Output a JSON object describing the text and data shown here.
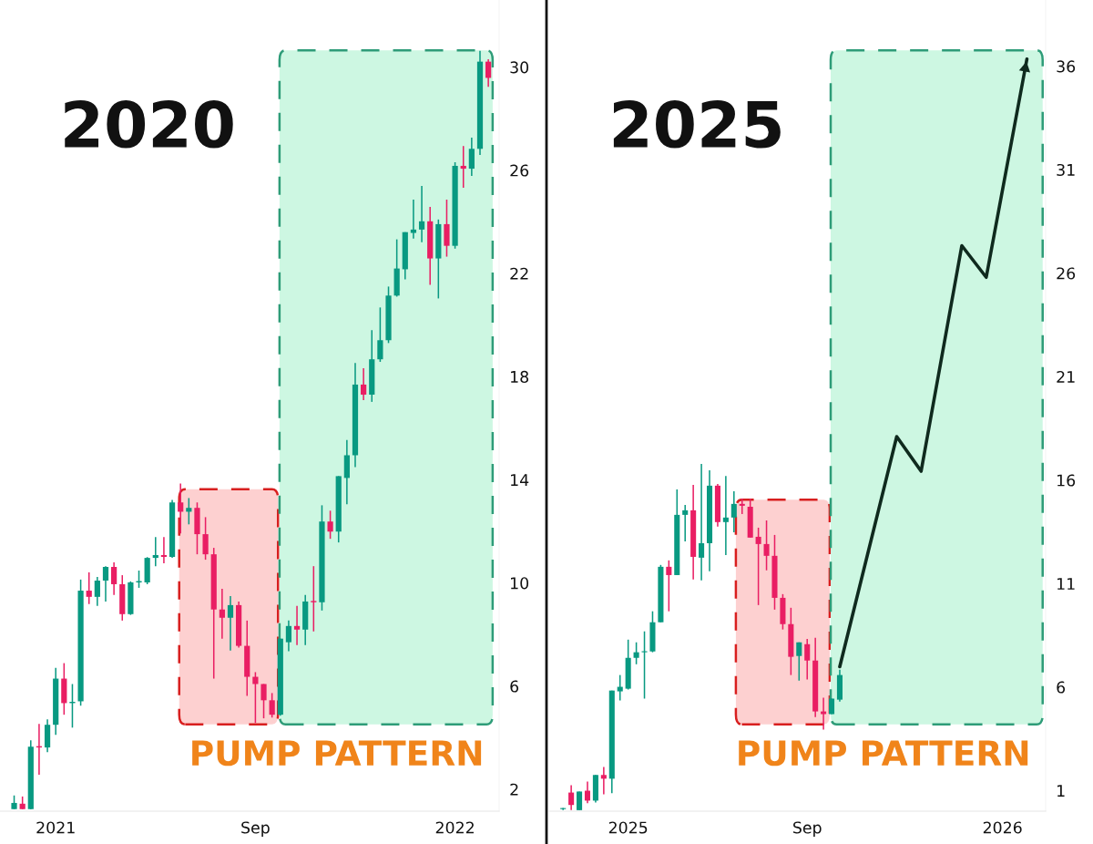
{
  "chart_data": [
    {
      "type": "candlestick",
      "annotations": [
        "2020",
        "PUMP PATTERN"
      ],
      "categories": [
        null,
        null,
        null,
        null,
        null,
        "2021",
        null,
        null,
        null,
        null,
        null,
        null,
        null,
        null,
        null,
        null,
        null,
        null,
        null,
        null,
        null,
        null,
        null,
        null,
        null,
        null,
        null,
        null,
        null,
        "Sep",
        null,
        null,
        null,
        null,
        null,
        null,
        null,
        null,
        null,
        null,
        null,
        null,
        null,
        null,
        null,
        null,
        null,
        null,
        null,
        null,
        null,
        null,
        null,
        "2022",
        null,
        null,
        null,
        null
      ],
      "ohlc": [
        [
          1.23,
          1.76,
          1.23,
          1.47
        ],
        [
          1.44,
          1.72,
          1.23,
          1.23
        ],
        [
          1.23,
          3.9,
          1.23,
          3.65
        ],
        [
          3.65,
          4.53,
          2.56,
          3.62
        ],
        [
          3.62,
          4.71,
          3.44,
          4.5
        ],
        [
          4.5,
          6.71,
          4.11,
          6.29
        ],
        [
          6.29,
          6.89,
          4.89,
          5.34
        ],
        [
          5.34,
          6.08,
          4.39,
          5.38
        ],
        [
          5.41,
          10.13,
          5.24,
          9.7
        ],
        [
          9.7,
          10.41,
          9.18,
          9.46
        ],
        [
          9.46,
          10.23,
          9.11,
          10.09
        ],
        [
          10.09,
          10.65,
          9.28,
          10.62
        ],
        [
          10.62,
          10.8,
          9.53,
          9.95
        ],
        [
          9.95,
          10.3,
          8.54,
          8.79
        ],
        [
          8.79,
          10.06,
          8.76,
          10.02
        ],
        [
          10.02,
          10.48,
          9.81,
          10.05
        ],
        [
          10.02,
          11.0,
          9.95,
          10.97
        ],
        [
          10.97,
          11.78,
          10.65,
          11.08
        ],
        [
          11.08,
          11.78,
          10.76,
          11.01
        ],
        [
          11.01,
          13.22,
          10.97,
          13.12
        ],
        [
          13.12,
          13.85,
          11.92,
          12.76
        ],
        [
          12.76,
          13.29,
          12.27,
          12.91
        ],
        [
          12.91,
          13.12,
          11.11,
          11.89
        ],
        [
          11.89,
          12.55,
          10.9,
          11.11
        ],
        [
          11.11,
          11.36,
          6.29,
          8.97
        ],
        [
          8.97,
          9.77,
          7.84,
          8.65
        ],
        [
          8.65,
          9.49,
          7.38,
          9.14
        ],
        [
          9.14,
          9.28,
          7.49,
          7.56
        ],
        [
          7.56,
          8.54,
          5.62,
          6.36
        ],
        [
          6.36,
          6.54,
          4.57,
          6.08
        ],
        [
          6.08,
          6.08,
          4.75,
          5.45
        ],
        [
          5.45,
          5.73,
          4.78,
          4.89
        ],
        [
          4.89,
          7.84,
          4.85,
          7.84
        ],
        [
          7.7,
          8.54,
          7.35,
          8.33
        ],
        [
          8.33,
          9.11,
          7.59,
          8.19
        ],
        [
          8.19,
          9.53,
          7.59,
          9.28
        ],
        [
          9.28,
          10.65,
          8.12,
          9.25
        ],
        [
          9.25,
          13.01,
          8.93,
          12.38
        ],
        [
          12.38,
          12.8,
          11.71,
          11.99
        ],
        [
          11.99,
          14.14,
          11.57,
          14.14
        ],
        [
          14.07,
          15.54,
          13.05,
          14.95
        ],
        [
          14.95,
          18.53,
          14.49,
          17.69
        ],
        [
          17.69,
          18.32,
          17.09,
          17.3
        ],
        [
          17.3,
          19.8,
          17.02,
          18.67
        ],
        [
          18.67,
          20.68,
          18.57,
          19.41
        ],
        [
          19.41,
          21.49,
          19.3,
          21.14
        ],
        [
          21.14,
          23.32,
          21.1,
          22.19
        ],
        [
          22.16,
          23.6,
          21.77,
          23.6
        ],
        [
          23.57,
          24.86,
          23.35,
          23.7
        ],
        [
          23.7,
          25.39,
          23.21,
          24.02
        ],
        [
          24.02,
          24.58,
          21.56,
          22.58
        ],
        [
          22.58,
          24.09,
          21.03,
          23.91
        ],
        [
          23.91,
          24.86,
          22.65,
          23.07
        ],
        [
          23.07,
          26.31,
          22.96,
          26.17
        ],
        [
          26.17,
          26.94,
          25.32,
          26.06
        ],
        [
          26.06,
          27.26,
          25.78,
          26.83
        ],
        [
          26.83,
          30.63,
          26.59,
          30.21
        ],
        [
          30.21,
          30.3,
          29.23,
          29.58
        ]
      ],
      "colors": [
        "#089981",
        "#e91e63",
        "#089981",
        "#e91e63",
        "#089981",
        "#089981",
        "#e91e63",
        "#089981",
        "#089981",
        "#e91e63",
        "#089981",
        "#089981",
        "#e91e63",
        "#e91e63",
        "#089981",
        "#089981",
        "#089981",
        "#089981",
        "#e91e63",
        "#089981",
        "#e91e63",
        "#089981",
        "#e91e63",
        "#e91e63",
        "#e91e63",
        "#e91e63",
        "#089981",
        "#e91e63",
        "#e91e63",
        "#e91e63",
        "#e91e63",
        "#e91e63",
        "#089981",
        "#089981",
        "#e91e63",
        "#089981",
        "#e91e63",
        "#089981",
        "#e91e63",
        "#089981",
        "#089981",
        "#089981",
        "#e91e63",
        "#089981",
        "#089981",
        "#089981",
        "#089981",
        "#089981",
        "#089981",
        "#089981",
        "#e91e63",
        "#089981",
        "#e91e63",
        "#089981",
        "#e91e63",
        "#089981",
        "#089981",
        "#e91e63"
      ],
      "ylim": [
        1.15,
        32.6
      ],
      "yticks": [
        2,
        6,
        10,
        14,
        18,
        22,
        26,
        30
      ],
      "grid": false
    },
    {
      "type": "candlestick",
      "annotations": [
        "2025",
        "PUMP PATTERN"
      ],
      "categories": [
        null,
        null,
        null,
        null,
        null,
        null,
        null,
        null,
        "2025",
        null,
        null,
        null,
        null,
        null,
        null,
        null,
        null,
        null,
        null,
        null,
        null,
        null,
        null,
        null,
        null,
        null,
        null,
        null,
        null,
        null,
        "Sep",
        null,
        null,
        null,
        null,
        null,
        null,
        null,
        null,
        null,
        null,
        null,
        null,
        null,
        null,
        null,
        null,
        null,
        null,
        null,
        null,
        null,
        null,
        null,
        "2026",
        null,
        null,
        null,
        null
      ],
      "ohlc": [
        [
          0.1,
          0.15,
          0.05,
          0.1
        ],
        [
          0.9,
          1.26,
          0.05,
          0.3
        ],
        [
          0.05,
          0.95,
          0.05,
          0.95
        ],
        [
          0.99,
          1.43,
          0.38,
          0.51
        ],
        [
          0.51,
          1.75,
          0.42,
          1.75
        ],
        [
          1.75,
          2.14,
          0.82,
          1.57
        ],
        [
          1.57,
          5.83,
          0.87,
          5.83
        ],
        [
          5.79,
          6.58,
          5.35,
          6.01
        ],
        [
          5.92,
          8.29,
          5.88,
          7.41
        ],
        [
          7.41,
          8.16,
          7.1,
          7.68
        ],
        [
          7.68,
          8.69,
          5.44,
          7.72
        ],
        [
          7.72,
          9.66,
          7.68,
          9.13
        ],
        [
          9.13,
          11.9,
          9.13,
          11.81
        ],
        [
          11.81,
          12.12,
          9.66,
          11.41
        ],
        [
          11.41,
          15.55,
          11.41,
          14.32
        ],
        [
          14.32,
          14.8,
          13.04,
          14.54
        ],
        [
          14.54,
          15.77,
          11.2,
          12.29
        ],
        [
          12.25,
          16.78,
          11.15,
          12.95
        ],
        [
          12.95,
          16.47,
          11.59,
          15.73
        ],
        [
          15.73,
          15.81,
          13.75,
          13.97
        ],
        [
          13.97,
          16.2,
          12.38,
          14.19
        ],
        [
          14.19,
          15.46,
          13.48,
          14.85
        ],
        [
          14.85,
          15.11,
          14.36,
          14.76
        ],
        [
          14.71,
          15.11,
          13.22,
          13.22
        ],
        [
          13.26,
          13.7,
          9.96,
          12.91
        ],
        [
          12.91,
          14.05,
          11.64,
          12.34
        ],
        [
          12.34,
          13.35,
          9.74,
          10.31
        ],
        [
          10.31,
          10.49,
          8.78,
          9.04
        ],
        [
          9.04,
          9.83,
          6.58,
          7.46
        ],
        [
          7.5,
          8.16,
          6.31,
          8.16
        ],
        [
          8.07,
          8.33,
          6.36,
          7.28
        ],
        [
          7.28,
          8.38,
          4.55,
          4.82
        ],
        [
          4.82,
          5.48,
          3.94,
          4.69
        ],
        [
          4.69,
          5.44,
          4.69,
          5.44
        ],
        [
          5.39,
          6.84,
          5.3,
          6.58
        ],
        null,
        null,
        null,
        null,
        null,
        null,
        null,
        null,
        null,
        null,
        null,
        null,
        null,
        null,
        null,
        null,
        null,
        null,
        null,
        null,
        null,
        null,
        null,
        null
      ],
      "colors": [
        "#089981",
        "#e91e63",
        "#089981",
        "#e91e63",
        "#089981",
        "#e91e63",
        "#089981",
        "#089981",
        "#089981",
        "#089981",
        "#089981",
        "#089981",
        "#089981",
        "#e91e63",
        "#089981",
        "#089981",
        "#e91e63",
        "#089981",
        "#089981",
        "#e91e63",
        "#089981",
        "#089981",
        "#e91e63",
        "#e91e63",
        "#e91e63",
        "#e91e63",
        "#e91e63",
        "#e91e63",
        "#e91e63",
        "#089981",
        "#e91e63",
        "#e91e63",
        "#e91e63",
        "#089981",
        "#089981",
        null,
        null,
        null,
        null,
        null,
        null,
        null,
        null,
        null,
        null,
        null,
        null,
        null,
        null,
        null,
        null,
        null,
        null,
        null,
        null,
        null,
        null,
        null,
        null
      ],
      "series": [
        {
          "type": "line",
          "color": "#0f2a1e",
          "values": [
            null,
            null,
            null,
            null,
            null,
            null,
            null,
            null,
            null,
            null,
            null,
            null,
            null,
            null,
            null,
            null,
            null,
            null,
            null,
            null,
            null,
            null,
            null,
            null,
            null,
            null,
            null,
            null,
            null,
            null,
            null,
            null,
            null,
            null,
            6.98,
            null,
            null,
            null,
            null,
            null,
            null,
            18.1,
            null,
            null,
            16.43,
            null,
            null,
            null,
            null,
            27.33,
            null,
            null,
            25.8,
            null,
            null,
            null,
            null,
            36.35,
            null
          ]
        }
      ],
      "ylim": [
        0,
        39.2
      ],
      "yticks": [
        1,
        6,
        11,
        16,
        21,
        26,
        31,
        36
      ],
      "grid": false
    }
  ]
}
